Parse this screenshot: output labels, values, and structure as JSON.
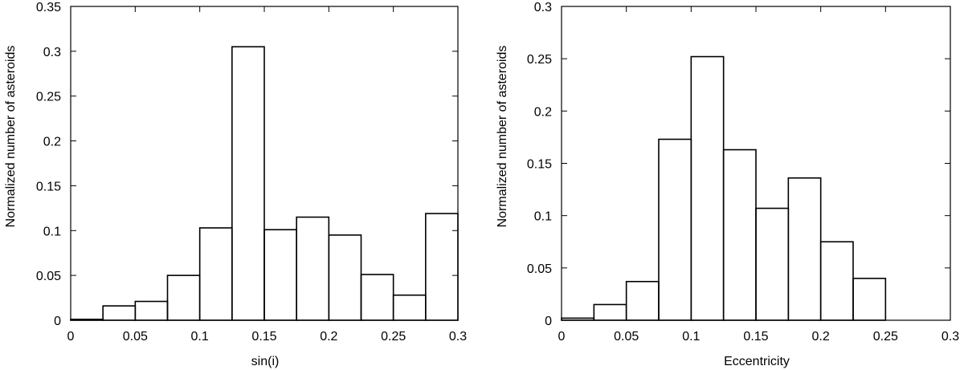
{
  "chart_data": [
    {
      "type": "bar",
      "histogram": true,
      "xlabel": "sin(i)",
      "ylabel": "Normalized number of asteroids",
      "xlim": [
        0,
        0.3
      ],
      "ylim": [
        0,
        0.35
      ],
      "xticks": [
        0,
        0.05,
        0.1,
        0.15,
        0.2,
        0.25,
        0.3
      ],
      "yticks": [
        0,
        0.05,
        0.1,
        0.15,
        0.2,
        0.25,
        0.3,
        0.35
      ],
      "xtick_labels": [
        "0",
        "0.05",
        "0.1",
        "0.15",
        "0.2",
        "0.25",
        "0.3"
      ],
      "ytick_labels": [
        "0",
        "0.05",
        "0.1",
        "0.15",
        "0.2",
        "0.25",
        "0.3",
        "0.35"
      ],
      "bin_edges": [
        0,
        0.025,
        0.05,
        0.075,
        0.1,
        0.125,
        0.15,
        0.175,
        0.2,
        0.225,
        0.25,
        0.275,
        0.3
      ],
      "values": [
        0.001,
        0.016,
        0.021,
        0.05,
        0.103,
        0.305,
        0.101,
        0.115,
        0.095,
        0.051,
        0.028,
        0.119
      ],
      "grid": false
    },
    {
      "type": "bar",
      "histogram": true,
      "xlabel": "Eccentricity",
      "ylabel": "Normalized number of asteroids",
      "xlim": [
        0,
        0.3
      ],
      "ylim": [
        0,
        0.3
      ],
      "xticks": [
        0,
        0.05,
        0.1,
        0.15,
        0.2,
        0.25,
        0.3
      ],
      "yticks": [
        0,
        0.05,
        0.1,
        0.15,
        0.2,
        0.25,
        0.3
      ],
      "xtick_labels": [
        "0",
        "0.05",
        "0.1",
        "0.15",
        "0.2",
        "0.25",
        "0.3"
      ],
      "ytick_labels": [
        "0",
        "0.05",
        "0.1",
        "0.15",
        "0.2",
        "0.25",
        "0.3"
      ],
      "bin_edges": [
        0,
        0.025,
        0.05,
        0.075,
        0.1,
        0.125,
        0.15,
        0.175,
        0.2,
        0.225,
        0.25
      ],
      "values": [
        0.002,
        0.015,
        0.037,
        0.173,
        0.252,
        0.163,
        0.107,
        0.136,
        0.075,
        0.04
      ],
      "grid": false
    }
  ]
}
